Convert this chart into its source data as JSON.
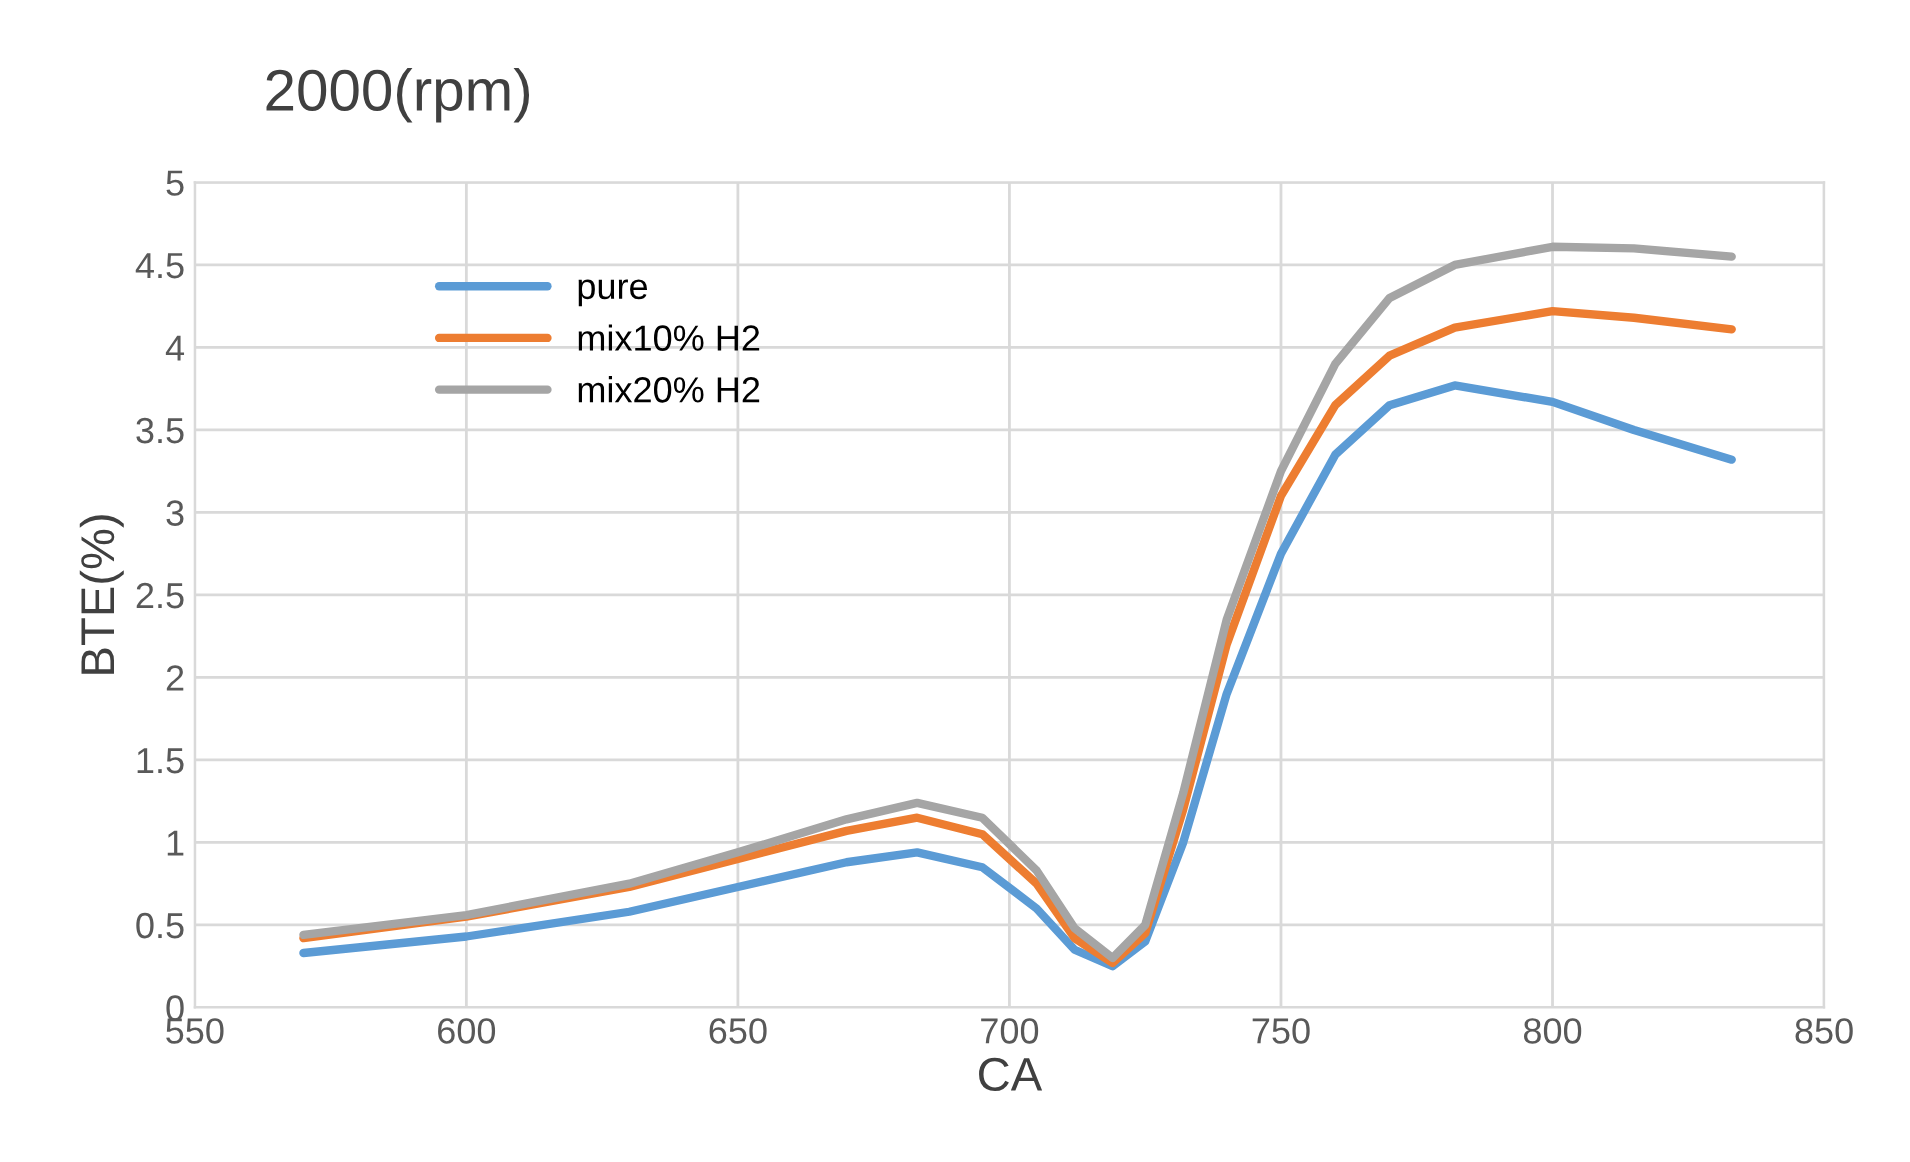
{
  "chart_data": {
    "type": "line",
    "title": "2000(rpm)",
    "xlabel": "CA",
    "ylabel": "BTE(%)",
    "x": [
      570,
      600,
      630,
      650,
      670,
      683,
      695,
      705,
      712,
      719,
      725,
      732,
      740,
      750,
      760,
      770,
      782,
      800,
      815,
      833
    ],
    "series": [
      {
        "name": "pure",
        "color": "#5b9bd5",
        "values": [
          0.33,
          0.43,
          0.58,
          0.73,
          0.88,
          0.94,
          0.85,
          0.6,
          0.35,
          0.25,
          0.4,
          1.0,
          1.9,
          2.75,
          3.35,
          3.65,
          3.77,
          3.67,
          3.5,
          3.32
        ]
      },
      {
        "name": "mix10% H2",
        "color": "#ed7d31",
        "values": [
          0.42,
          0.55,
          0.73,
          0.9,
          1.07,
          1.15,
          1.05,
          0.75,
          0.42,
          0.27,
          0.45,
          1.2,
          2.2,
          3.1,
          3.65,
          3.95,
          4.12,
          4.22,
          4.18,
          4.11
        ]
      },
      {
        "name": "mix20% H2",
        "color": "#a5a5a5",
        "values": [
          0.44,
          0.56,
          0.75,
          0.94,
          1.14,
          1.24,
          1.15,
          0.83,
          0.48,
          0.3,
          0.5,
          1.3,
          2.35,
          3.25,
          3.9,
          4.3,
          4.5,
          4.61,
          4.6,
          4.55
        ]
      }
    ],
    "xlim": [
      550,
      850
    ],
    "xticks": [
      550,
      600,
      650,
      700,
      750,
      800,
      850
    ],
    "ylim": [
      0,
      5
    ],
    "yticks": [
      0,
      0.5,
      1,
      1.5,
      2,
      2.5,
      3,
      3.5,
      4,
      4.5,
      5
    ],
    "grid": true,
    "legend": "top left",
    "marker": "none",
    "line_style": "solid"
  }
}
